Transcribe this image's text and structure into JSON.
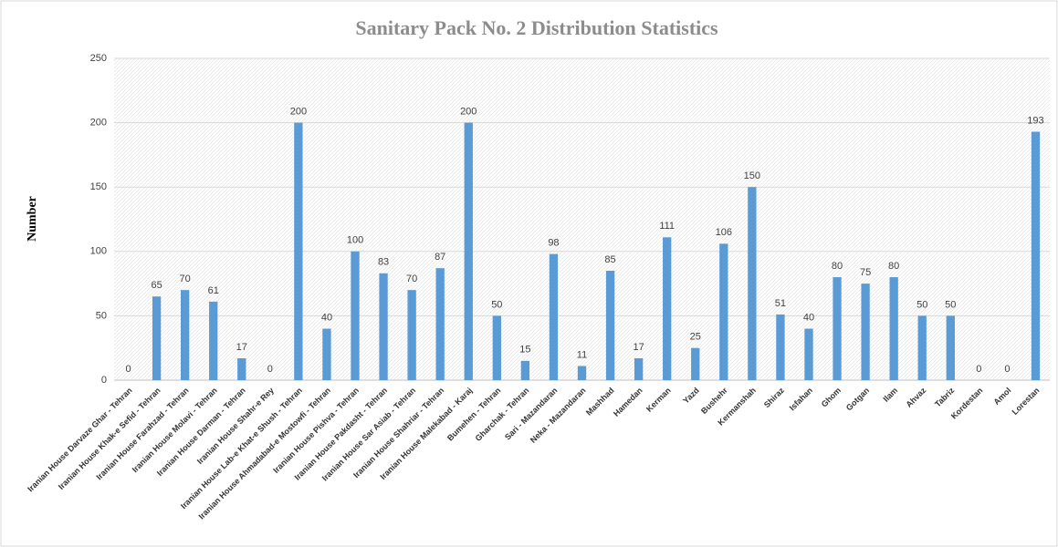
{
  "chart_data": {
    "type": "bar",
    "title": "Sanitary Pack No. 2 Distribution Statistics",
    "y_label": "Number",
    "categories": [
      "Iranian House Darvaze Ghar - Tehran",
      "Iranian House Khak-e Sefid - Tehran",
      "Iranian House Farahzad - Tehran",
      "Iranian House Molavi - Tehran",
      "Iranian House Darman - Tehran",
      "Iranian House Shahr-e Rey",
      "Iranian House Lab-e Khat-e Shush - Tehran",
      "Iranian House Ahmadabad-e Mostowfi - Tehran",
      "Iranian House Pishva - Tehran",
      "Iranian House Pakdasht - Tehran",
      "Iranian House Sar Asiab - Tehran",
      "Iranian House Shahriar - Tehran",
      "Iranian House Malekabad - Karaj",
      "Bumehen - Tehran",
      "Gharchak - Tehran",
      "Sari - Mazandaran",
      "Neka - Mazandaran",
      "Mashhad",
      "Hamedan",
      "Kerman",
      "Yazd",
      "Bushehr",
      "Kermanshah",
      "Shiraz",
      "Isfahan",
      "Ghom",
      "Gotgan",
      "Ilam",
      "Ahvaz",
      "Tabriz",
      "Kordestan",
      "Amol",
      "Lorestan"
    ],
    "values": [
      0,
      65,
      70,
      61,
      17,
      0,
      200,
      40,
      100,
      83,
      70,
      87,
      200,
      50,
      15,
      98,
      11,
      85,
      17,
      111,
      25,
      106,
      150,
      51,
      40,
      80,
      75,
      80,
      50,
      50,
      0,
      0,
      193
    ],
    "color": "#5b9bd5",
    "ylim": [
      0,
      250
    ],
    "yticks": [
      0,
      50,
      100,
      150,
      200,
      250
    ],
    "grid": true
  }
}
